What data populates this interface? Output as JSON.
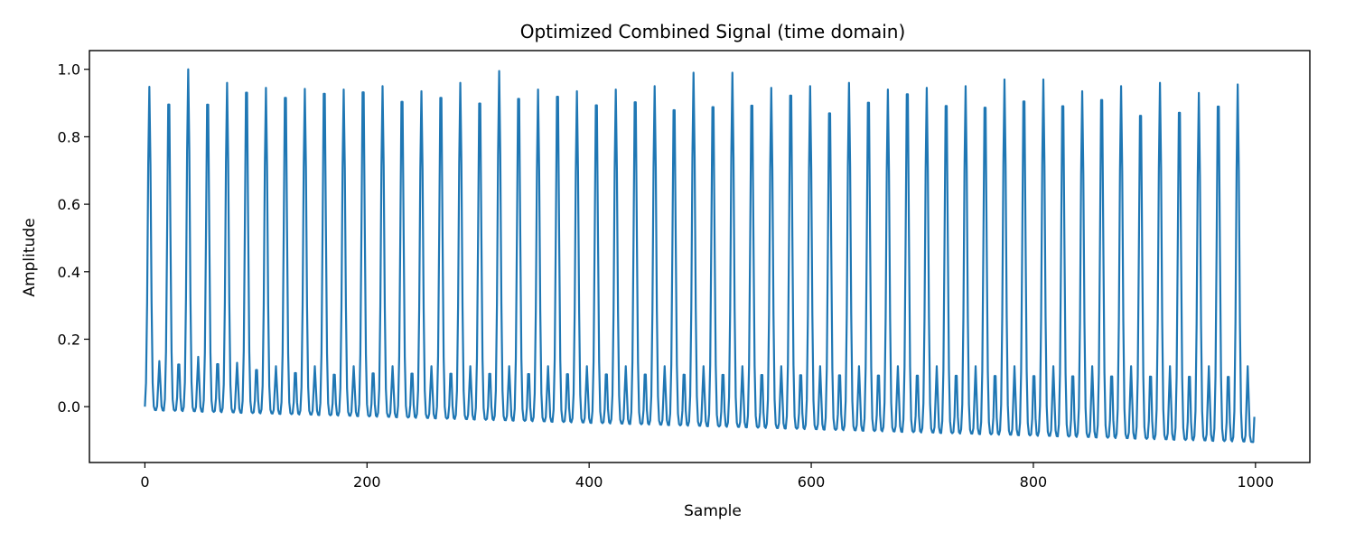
{
  "chart_data": {
    "type": "line",
    "title": "Optimized Combined Signal (time domain)",
    "xlabel": "Sample",
    "ylabel": "Amplitude",
    "xlim": [
      -49.95,
      1048.95
    ],
    "ylim": [
      -0.1655,
      1.0555
    ],
    "grid": false,
    "line_color": "#1f77b4",
    "x_ticks": [
      0,
      200,
      400,
      600,
      800,
      1000
    ],
    "x_tick_labels": [
      "0",
      "200",
      "400",
      "600",
      "800",
      "1000"
    ],
    "y_ticks": [
      0.0,
      0.2,
      0.4,
      0.6,
      0.8,
      1.0
    ],
    "y_tick_labels": [
      "0.0",
      "0.2",
      "0.4",
      "0.6",
      "0.8",
      "1.0"
    ],
    "series": [
      {
        "n_samples": 1000,
        "period_samples": 17.5,
        "main_peak_offset": 4.0,
        "secondary_peak_offset": 13.0,
        "peak_values": [
          0.948,
          0.96,
          1.0,
          0.96,
          0.96,
          0.998,
          0.945,
          0.982,
          0.942,
          0.995,
          0.94,
          1.0,
          0.95,
          0.97,
          0.935,
          0.983,
          0.96,
          0.965,
          0.995,
          0.98,
          0.94,
          0.987,
          0.935,
          0.96,
          0.94,
          0.97,
          0.95,
          0.945,
          0.99,
          0.955,
          0.99,
          0.96,
          0.945,
          0.992,
          0.95,
          0.936,
          0.96,
          0.97,
          0.94,
          0.997,
          0.945,
          0.96,
          0.95,
          0.955,
          0.97,
          0.975,
          0.97,
          0.96,
          0.935,
          0.98,
          0.95,
          0.93,
          0.96,
          0.94,
          0.93,
          0.96,
          0.955
        ],
        "secondary_peak_values": [
          0.135,
          0.148,
          0.148,
          0.15,
          0.13,
          0.13,
          0.12,
          0.12,
          0.12,
          0.115,
          0.12,
          0.12,
          0.12,
          0.12,
          0.12,
          0.12,
          0.12,
          0.12,
          0.12,
          0.12,
          0.12,
          0.12,
          0.12,
          0.12,
          0.12,
          0.12,
          0.12,
          0.12,
          0.12,
          0.12,
          0.12,
          0.12,
          0.12,
          0.12,
          0.12,
          0.12,
          0.12,
          0.12,
          0.12,
          0.12,
          0.12,
          0.12,
          0.12,
          0.12,
          0.12,
          0.12,
          0.12,
          0.12,
          0.12,
          0.12,
          0.12,
          0.12,
          0.12,
          0.12,
          0.12,
          0.12,
          0.12
        ],
        "trough_start": -0.01,
        "trough_end": -0.105,
        "first_value": 0.0,
        "last_value": -0.03
      }
    ]
  }
}
